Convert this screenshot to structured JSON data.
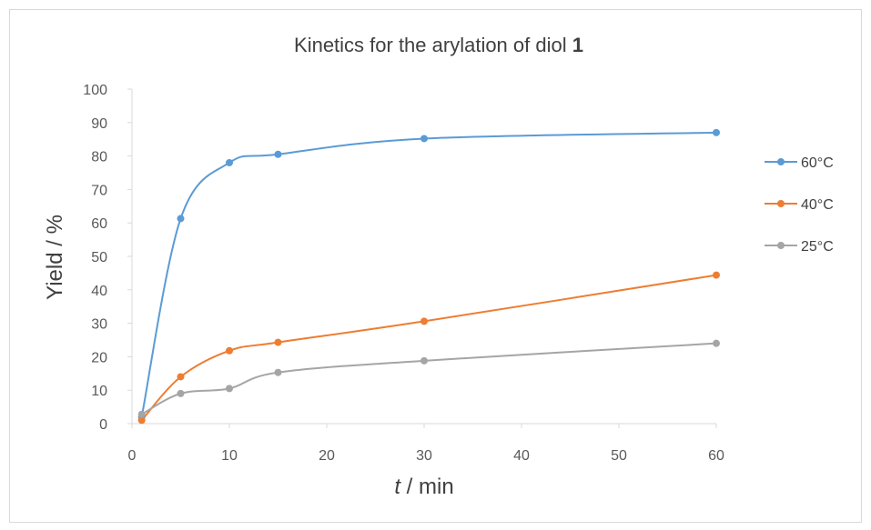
{
  "chart_data": {
    "type": "line",
    "title": {
      "text": "Kinetics for the arylation of diol ",
      "bold": "1"
    },
    "xlabel": {
      "italic": "t",
      "rest": " / min"
    },
    "ylabel": "Yield / %",
    "x_ticks": [
      "0",
      "10",
      "20",
      "30",
      "40",
      "50",
      "60"
    ],
    "y_ticks": [
      "0",
      "10",
      "20",
      "30",
      "40",
      "50",
      "60",
      "70",
      "80",
      "90",
      "100"
    ],
    "xlim": [
      0,
      60
    ],
    "ylim": [
      0,
      100
    ],
    "x": [
      1,
      5,
      10,
      15,
      30,
      60
    ],
    "series": [
      {
        "name": "60°C",
        "color": "#5b9bd5",
        "values": [
          2,
          61.3,
          78,
          80.5,
          85.2,
          87
        ]
      },
      {
        "name": "40°C",
        "color": "#ed7d31",
        "values": [
          1,
          14,
          21.8,
          24.3,
          30.6,
          44.4
        ]
      },
      {
        "name": "25°C",
        "color": "#a5a5a5",
        "values": [
          2.8,
          9,
          10.5,
          15.3,
          18.8,
          24
        ]
      }
    ],
    "legend_position": "right",
    "grid": false,
    "smoothed": true,
    "axis_color": "#d9d9d9"
  }
}
